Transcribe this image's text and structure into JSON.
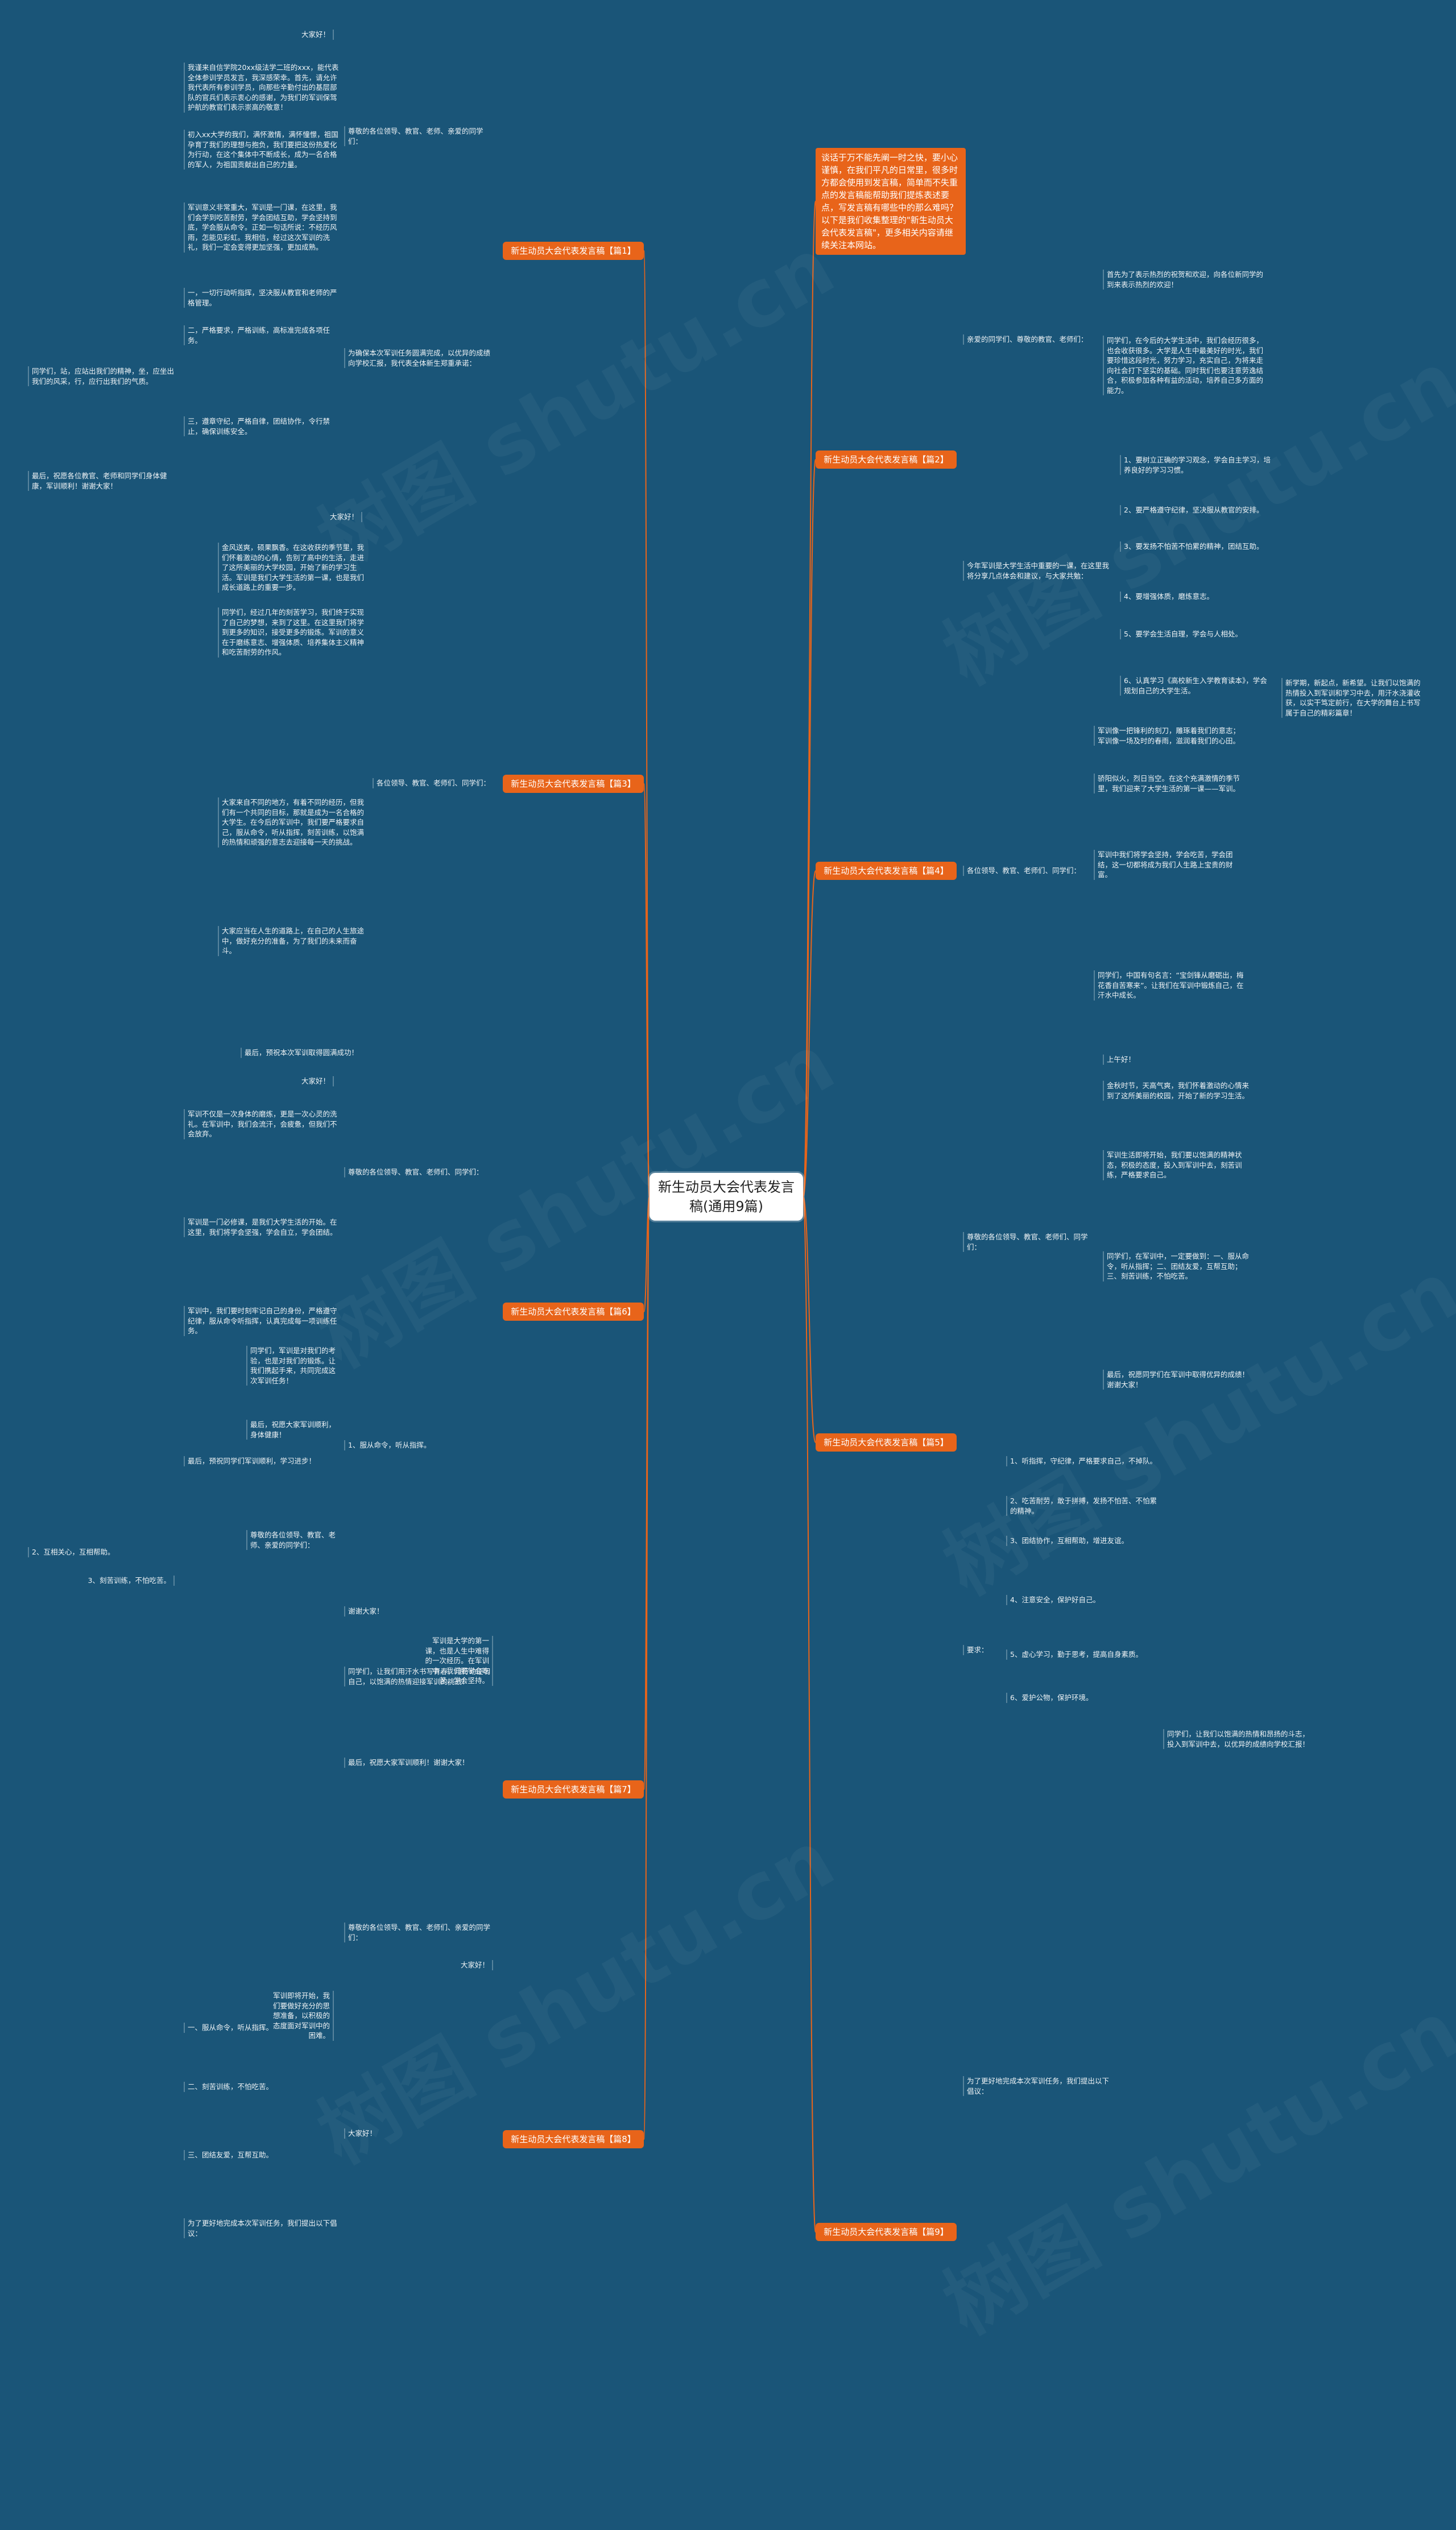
{
  "root": "新生动员大会代表发言稿(通用9篇)",
  "intro": "谈话于万不能先阐一时之快，要小心谨慎，在我们平凡的日常里，很多时方都会使用到发言稿，简单而不失重点的发言稿能帮助我们提炼表述要点，写发言稿有哪些中的那么难吗？以下是我们收集整理的\"新生动员大会代表发言稿\"，更多相关内容请继续关注本网站。",
  "branches": [
    {
      "title": "新生动员大会代表发言稿【篇1】"
    },
    {
      "title": "新生动员大会代表发言稿【篇2】"
    },
    {
      "title": "新生动员大会代表发言稿【篇3】"
    },
    {
      "title": "新生动员大会代表发言稿【篇4】"
    },
    {
      "title": "新生动员大会代表发言稿【篇5】"
    },
    {
      "title": "新生动员大会代表发言稿【篇6】"
    },
    {
      "title": "新生动员大会代表发言稿【篇7】"
    },
    {
      "title": "新生动员大会代表发言稿【篇8】"
    },
    {
      "title": "新生动员大会代表发言稿【篇9】"
    }
  ],
  "leaves": [
    {
      "text": "大家好！"
    },
    {
      "text": "我谨来自信学院20xx级法学二班的xxx，能代表全体参训学员发言，我深感荣幸。首先，请允许我代表所有参训学员，向那些辛勤付出的基层部队的官兵们表示衷心的感谢，为我们的军训保驾护航的教官们表示崇高的敬意！"
    },
    {
      "text": "初入xx大学的我们，满怀激情，满怀憧憬，祖国孕育了我们的理想与抱负，我们要把这份热爱化为行动，在这个集体中不断成长，成为一名合格的军人，为祖国贡献出自己的力量。"
    },
    {
      "text": "军训意义非常重大，军训是一门课，在这里，我们会学到吃苦耐劳，学会团结互助，学会坚持到底，学会服从命令。正如一句话所说：不经历风雨，怎能见彩虹。我相信，经过这次军训的洗礼，我们一定会变得更加坚强，更加成熟。"
    },
    {
      "text": "尊敬的各位领导、教官、老师、亲爱的同学们："
    },
    {
      "text": "一，一切行动听指挥，坚决服从教官和老师的严格管理。"
    },
    {
      "text": "二，严格要求，严格训练，高标准完成各项任务。"
    },
    {
      "text": "三，遵章守纪，严格自律，团结协作，令行禁止，确保训练安全。"
    },
    {
      "text": "为确保本次军训任务圆满完成，以优异的成绩向学校汇报，我代表全体新生郑重承诺："
    },
    {
      "text": "同学们，站，应站出我们的精神，坐，应坐出我们的风采，行，应行出我们的气质。"
    },
    {
      "text": "最后，祝愿各位教官、老师和同学们身体健康，军训顺利！谢谢大家！"
    },
    {
      "text": "首先为了表示热烈的祝贺和欢迎，向各位新同学的到来表示热烈的欢迎！"
    },
    {
      "text": "同学们，在今后的大学生活中，我们会经历很多，也会收获很多。大学是人生中最美好的时光，我们要珍惜这段时光，努力学习，充实自己，为将来走向社会打下坚实的基础。同时我们也要注意劳逸结合，积极参加各种有益的活动，培养自己多方面的能力。"
    },
    {
      "text": "亲爱的同学们、尊敬的教官、老师们："
    },
    {
      "text": "1、要树立正确的学习观念，学会自主学习，培养良好的学习习惯。"
    },
    {
      "text": "2、要严格遵守纪律，坚决服从教官的安排。"
    },
    {
      "text": "3、要发扬不怕苦不怕累的精神，团结互助。"
    },
    {
      "text": "4、要增强体质，磨炼意志。"
    },
    {
      "text": "5、要学会生活自理，学会与人相处。"
    },
    {
      "text": "6、认真学习《高校新生入学教育读本》，学会规划自己的大学生活。"
    },
    {
      "text": "新学期，新起点，新希望。让我们以饱满的热情投入到军训和学习中去，用汗水浇灌收获，以实干笃定前行，在大学的舞台上书写属于自己的精彩篇章！"
    },
    {
      "text": "今年军训是大学生活中重要的一课，在这里我将分享几点体会和建议，与大家共勉："
    },
    {
      "text": "大家好！"
    },
    {
      "text": "金风送爽，硕果飘香。在这收获的季节里，我们怀着激动的心情，告别了高中的生活，走进了这所美丽的大学校园，开始了新的学习生活。军训是我们大学生活的第一课，也是我们成长道路上的重要一步。"
    },
    {
      "text": "同学们，经过几年的刻苦学习，我们终于实现了自己的梦想，来到了这里。在这里我们将学到更多的知识，接受更多的锻炼。军训的意义在于磨练意志、增强体质、培养集体主义精神和吃苦耐劳的作风。"
    },
    {
      "text": "大家来自不同的地方，有着不同的经历，但我们有一个共同的目标，那就是成为一名合格的大学生。在今后的军训中，我们要严格要求自己，服从命令，听从指挥，刻苦训练，以饱满的热情和顽强的意志去迎接每一天的挑战。"
    },
    {
      "text": "大家应当在人生的道路上，在自己的人生旅途中，做好充分的准备，为了我们的未来而奋斗。"
    },
    {
      "text": "最后，预祝本次军训取得圆满成功！"
    },
    {
      "text": "各位领导、教官、老师们、同学们："
    },
    {
      "text": "军训像一把锋利的刻刀，雕琢着我们的意志；军训像一场及时的春雨，滋润着我们的心田。"
    },
    {
      "text": "骄阳似火，烈日当空。在这个充满激情的季节里，我们迎来了大学生活的第一课——军训。"
    },
    {
      "text": "军训中我们将学会坚持，学会吃苦，学会团结，这一切都将成为我们人生路上宝贵的财富。"
    },
    {
      "text": "同学们，中国有句名言：“宝剑锋从磨砺出，梅花香自苦寒来”。让我们在军训中锻炼自己，在汗水中成长。"
    },
    {
      "text": "各位领导、教官、老师们、同学们："
    },
    {
      "text": "上午好！"
    },
    {
      "text": "金秋时节，天高气爽，我们怀着激动的心情来到了这所美丽的校园，开始了新的学习生活。"
    },
    {
      "text": "军训生活即将开始，我们要以饱满的精神状态，积极的态度，投入到军训中去，刻苦训练，严格要求自己。"
    },
    {
      "text": "同学们，在军训中，一定要做到：一、服从命令，听从指挥；二、团结友爱，互帮互助；三、刻苦训练，不怕吃苦。"
    },
    {
      "text": "最后，祝愿同学们在军训中取得优异的成绩！谢谢大家！"
    },
    {
      "text": "尊敬的各位领导、教官、老师们、同学们："
    },
    {
      "text": "1、听指挥，守纪律，严格要求自己，不掉队。"
    },
    {
      "text": "2、吃苦耐劳，敢于拼搏，发扬不怕苦、不怕累的精神。"
    },
    {
      "text": "3、团结协作，互相帮助，增进友谊。"
    },
    {
      "text": "4、注意安全，保护好自己。"
    },
    {
      "text": "5、虚心学习，勤于思考，提高自身素质。"
    },
    {
      "text": "6、爱护公物，保护环境。"
    },
    {
      "text": "同学们，让我们以饱满的热情和昂扬的斗志，投入到军训中去，以优异的成绩向学校汇报！"
    },
    {
      "text": "要求："
    },
    {
      "text": "大家好！"
    },
    {
      "text": "军训不仅是一次身体的磨炼，更是一次心灵的洗礼。在军训中，我们会流汗，会疲惫，但我们不会放弃。"
    },
    {
      "text": "军训是一门必修课，是我们大学生活的开始。在这里，我们将学会坚强，学会自立，学会团结。"
    },
    {
      "text": "军训中，我们要时刻牢记自己的身份，严格遵守纪律，服从命令听指挥，认真完成每一项训练任务。"
    },
    {
      "text": "最后，预祝同学们军训顺利，学习进步！"
    },
    {
      "text": "尊敬的各位领导、教官、老师们、同学们："
    },
    {
      "text": "谢谢大家！"
    },
    {
      "text": "大家好！"
    },
    {
      "text": "军训是大学的第一课，也是人生中难得的一次经历。在军训中，我们要学会吃苦，学会坚持。"
    },
    {
      "text": "同学们，让我们用汗水书写青春，用行动证明自己，以饱满的热情迎接军训的挑战！"
    },
    {
      "text": "最后，祝愿大家军训顺利！谢谢大家！"
    },
    {
      "text": "尊敬的各位领导、教官、老师们、亲爱的同学们："
    },
    {
      "text": "大家好！"
    },
    {
      "text": "军训即将开始，我们要做好充分的思想准备，以积极的态度面对军训中的困难。"
    },
    {
      "text": "一、服从命令，听从指挥。"
    },
    {
      "text": "二、刻苦训练，不怕吃苦。"
    },
    {
      "text": "三、团结友爱，互帮互助。"
    },
    {
      "text": "为了更好地完成本次军训任务，我们提出以下倡议："
    },
    {
      "text": "同学们，军训是对我们的考验，也是对我们的锻炼。让我们携起手来，共同完成这次军训任务！"
    },
    {
      "text": "最后，祝愿大家军训顺利，身体健康！"
    },
    {
      "text": "尊敬的各位领导、教官、老师、亲爱的同学们："
    },
    {
      "text": "1、服从命令，听从指挥。"
    },
    {
      "text": "2、互相关心，互相帮助。"
    },
    {
      "text": "3、刻苦训练，不怕吃苦。"
    },
    {
      "text": "为了更好地完成本次军训任务，我们提出以下倡议："
    }
  ],
  "watermark": "树图 shutu.cn"
}
